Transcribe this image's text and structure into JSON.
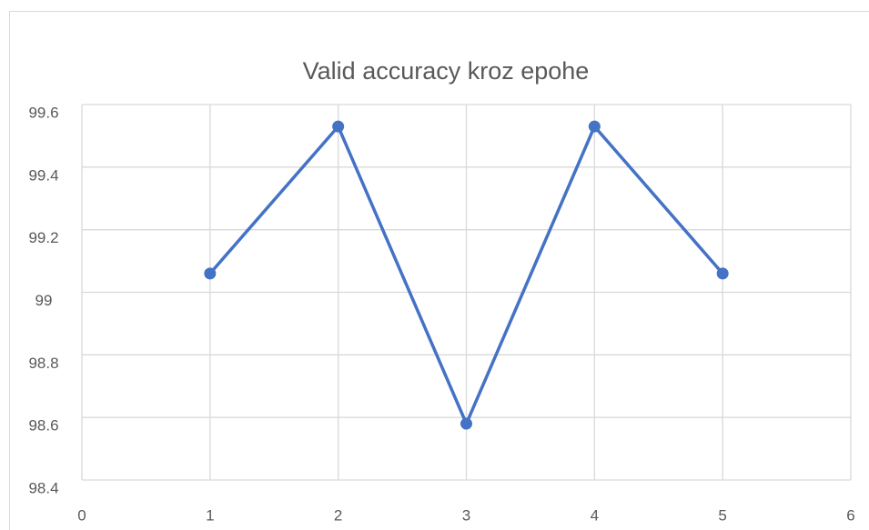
{
  "chart_data": {
    "type": "line",
    "title": "Valid accuracy kroz epohe",
    "x": [
      1,
      2,
      3,
      4,
      5
    ],
    "series": [
      {
        "name": "Valid accuracy",
        "color": "#4472c4",
        "values": [
          99.06,
          99.53,
          98.58,
          99.53,
          99.06
        ]
      }
    ],
    "xlim": [
      0,
      6
    ],
    "xticks": [
      0,
      1,
      2,
      3,
      4,
      5,
      6
    ],
    "ylim": [
      98.4,
      99.6
    ],
    "yticks": [
      98.4,
      98.6,
      98.8,
      99,
      99.2,
      99.4,
      99.6
    ],
    "grid": true,
    "legend": false
  }
}
